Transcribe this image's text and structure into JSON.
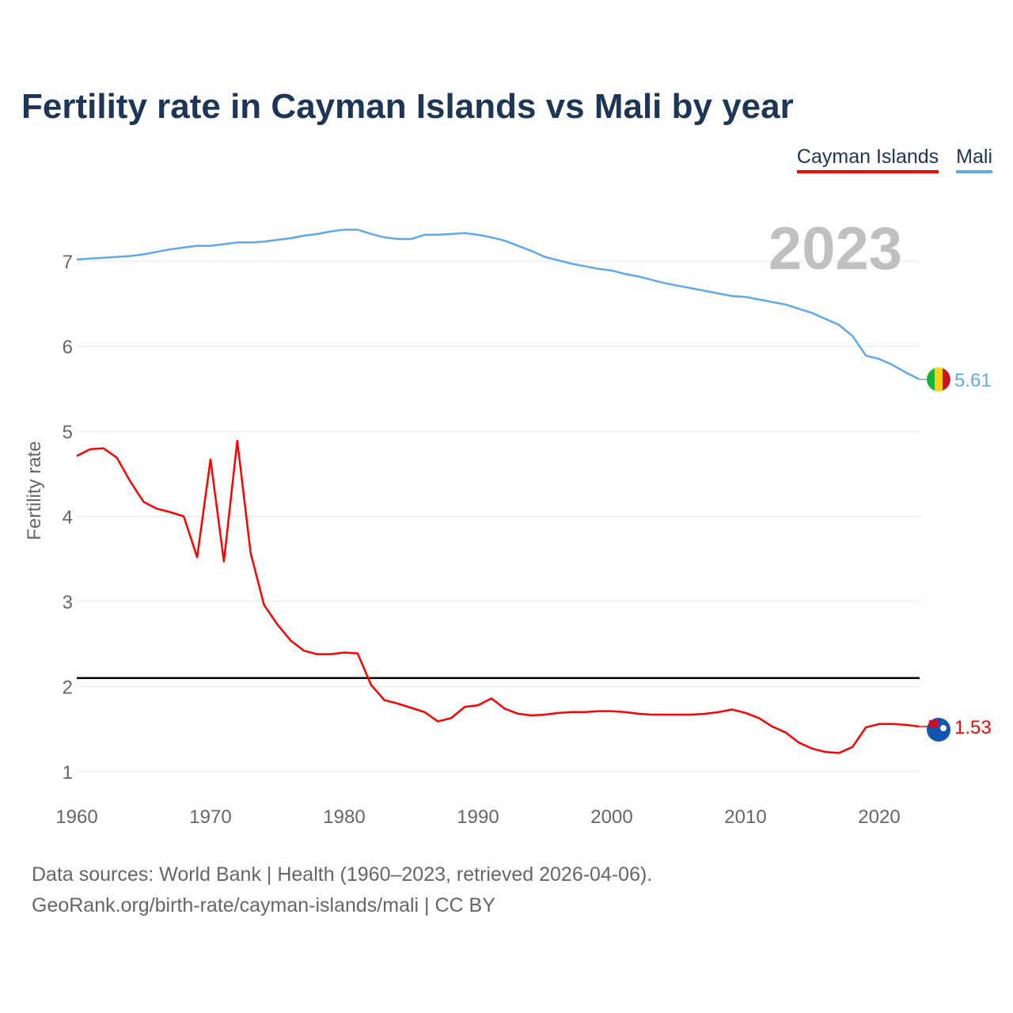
{
  "title": "Fertility rate in Cayman Islands vs Mali by year",
  "year_label": "2023",
  "footer": {
    "line1": "Data sources: World Bank | Health (1960–2023, retrieved 2026-04-06).",
    "line2": "GeoRank.org/birth-rate/cayman-islands/mali | CC BY"
  },
  "chart_data": {
    "type": "line",
    "title": "Fertility rate in Cayman Islands vs Mali by year",
    "xlabel": "",
    "ylabel": "Fertility rate",
    "xlim": [
      1960,
      2023
    ],
    "ylim": [
      0.8,
      7.6
    ],
    "xticks": [
      "1960",
      "1970",
      "1980",
      "1990",
      "2000",
      "2010",
      "2020"
    ],
    "yticks": [
      "1",
      "2",
      "3",
      "4",
      "5",
      "6",
      "7"
    ],
    "reference_line": 2.1,
    "legend_placement": "top-right",
    "x": [
      1960,
      1961,
      1962,
      1963,
      1964,
      1965,
      1966,
      1967,
      1968,
      1969,
      1970,
      1971,
      1972,
      1973,
      1974,
      1975,
      1976,
      1977,
      1978,
      1979,
      1980,
      1981,
      1982,
      1983,
      1984,
      1985,
      1986,
      1987,
      1988,
      1989,
      1990,
      1991,
      1992,
      1993,
      1994,
      1995,
      1996,
      1997,
      1998,
      1999,
      2000,
      2001,
      2002,
      2003,
      2004,
      2005,
      2006,
      2007,
      2008,
      2009,
      2010,
      2011,
      2012,
      2013,
      2014,
      2015,
      2016,
      2017,
      2018,
      2019,
      2020,
      2021,
      2022,
      2023
    ],
    "series": [
      {
        "name": "Cayman Islands",
        "color": "#ff0000",
        "end_label": "1.53",
        "values": [
          4.71,
          4.79,
          4.8,
          4.69,
          4.41,
          4.17,
          4.09,
          4.05,
          4.0,
          3.52,
          4.67,
          3.47,
          4.89,
          3.57,
          2.96,
          2.73,
          2.54,
          2.42,
          2.38,
          2.38,
          2.4,
          2.39,
          2.02,
          1.84,
          1.8,
          1.75,
          1.7,
          1.59,
          1.63,
          1.76,
          1.78,
          1.86,
          1.74,
          1.68,
          1.66,
          1.67,
          1.69,
          1.7,
          1.7,
          1.71,
          1.71,
          1.7,
          1.68,
          1.67,
          1.67,
          1.67,
          1.67,
          1.68,
          1.7,
          1.73,
          1.69,
          1.63,
          1.53,
          1.46,
          1.34,
          1.27,
          1.23,
          1.22,
          1.29,
          1.52,
          1.56,
          1.56,
          1.55,
          1.53
        ]
      },
      {
        "name": "Mali",
        "color": "#5fa8ec",
        "end_label": "5.61",
        "values": [
          7.02,
          7.03,
          7.04,
          7.05,
          7.06,
          7.08,
          7.11,
          7.14,
          7.16,
          7.18,
          7.18,
          7.2,
          7.22,
          7.22,
          7.23,
          7.25,
          7.27,
          7.3,
          7.32,
          7.35,
          7.37,
          7.37,
          7.32,
          7.28,
          7.26,
          7.26,
          7.31,
          7.31,
          7.32,
          7.33,
          7.31,
          7.28,
          7.24,
          7.18,
          7.12,
          7.05,
          7.01,
          6.97,
          6.94,
          6.91,
          6.89,
          6.85,
          6.82,
          6.78,
          6.74,
          6.71,
          6.68,
          6.65,
          6.62,
          6.59,
          6.58,
          6.55,
          6.52,
          6.49,
          6.44,
          6.39,
          6.32,
          6.25,
          6.12,
          5.89,
          5.85,
          5.78,
          5.69,
          5.61
        ]
      }
    ]
  }
}
